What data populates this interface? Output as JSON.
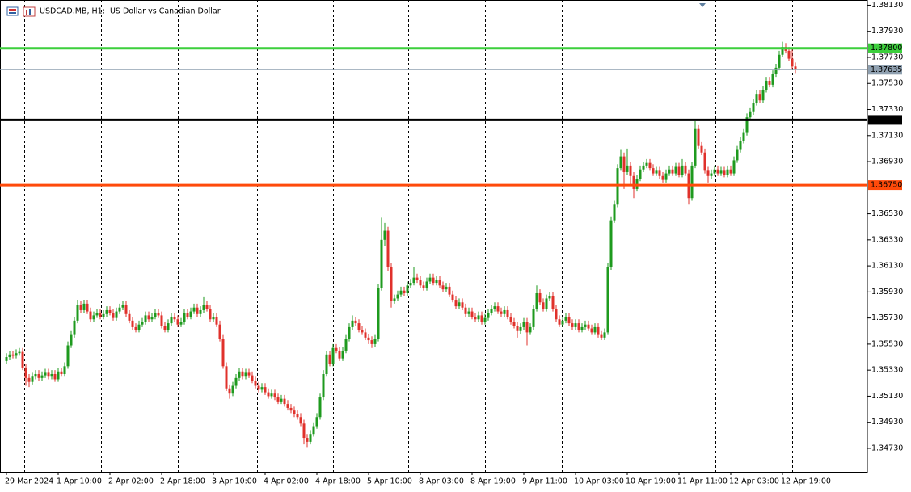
{
  "chart_data": {
    "type": "candlestick",
    "title": "USDCAD.MB, H1:  US Dollar vs Canadian Dollar",
    "up_color": "#1e9a1e",
    "down_color": "#e0312b",
    "xlim": [
      -0.75,
      266.25
    ],
    "ylim": [
      1.3455,
      1.3817
    ],
    "xticks": [
      {
        "value": 0,
        "label": "29 Mar 2024"
      },
      {
        "value": 16,
        "label": "1 Apr 10:00"
      },
      {
        "value": 32,
        "label": "2 Apr 02:00"
      },
      {
        "value": 48,
        "label": "2 Apr 18:00"
      },
      {
        "value": 64,
        "label": "3 Apr 10:00"
      },
      {
        "value": 80,
        "label": "4 Apr 02:00"
      },
      {
        "value": 96,
        "label": "4 Apr 18:00"
      },
      {
        "value": 112,
        "label": "5 Apr 10:00"
      },
      {
        "value": 128,
        "label": "8 Apr 03:00"
      },
      {
        "value": 144,
        "label": "8 Apr 19:00"
      },
      {
        "value": 160,
        "label": "9 Apr 11:00"
      },
      {
        "value": 176,
        "label": "10 Apr 03:00"
      },
      {
        "value": 192,
        "label": "10 Apr 19:00"
      },
      {
        "value": 208,
        "label": "11 Apr 11:00"
      },
      {
        "value": 224,
        "label": "12 Apr 03:00"
      },
      {
        "value": 240,
        "label": "12 Apr 19:00"
      }
    ],
    "yticks": [
      {
        "value": 1.3813,
        "label": "1.38130"
      },
      {
        "value": 1.3793,
        "label": "1.37930"
      },
      {
        "value": 1.3773,
        "label": "1.37730"
      },
      {
        "value": 1.3753,
        "label": "1.37530"
      },
      {
        "value": 1.3733,
        "label": "1.37330"
      },
      {
        "value": 1.3713,
        "label": "1.37130"
      },
      {
        "value": 1.3693,
        "label": "1.36930"
      },
      {
        "value": 1.3653,
        "label": "1.36530"
      },
      {
        "value": 1.3633,
        "label": "1.36330"
      },
      {
        "value": 1.3613,
        "label": "1.36130"
      },
      {
        "value": 1.3593,
        "label": "1.35930"
      },
      {
        "value": 1.3573,
        "label": "1.35730"
      },
      {
        "value": 1.3553,
        "label": "1.35530"
      },
      {
        "value": 1.3533,
        "label": "1.35330"
      },
      {
        "value": 1.3513,
        "label": "1.35130"
      },
      {
        "value": 1.3493,
        "label": "1.34930"
      },
      {
        "value": 1.3473,
        "label": "1.34730"
      }
    ],
    "levels": [
      {
        "value": 1.378,
        "label": "1.37800",
        "color": "#3ccf3c"
      },
      {
        "value": 1.3725,
        "label": "1.37250",
        "color": "#000000"
      },
      {
        "value": 1.3675,
        "label": "1.36750",
        "color": "#ff4a0a"
      }
    ],
    "bid": {
      "value": 1.37635,
      "label": "1.37635",
      "color": "#8fa0b0"
    },
    "open": [
      1.354,
      1.3543,
      1.3545,
      1.3544,
      1.3546,
      1.3547,
      1.3535,
      1.3527,
      1.3524,
      1.3528,
      1.353,
      1.3527,
      1.3529,
      1.3531,
      1.3528,
      1.353,
      1.3526,
      1.3532,
      1.353,
      1.3536,
      1.3552,
      1.356,
      1.3571,
      1.3583,
      1.3579,
      1.3584,
      1.3578,
      1.3572,
      1.3575,
      1.3577,
      1.3574,
      1.3576,
      1.3579,
      1.3577,
      1.3573,
      1.3578,
      1.3581,
      1.3583,
      1.3576,
      1.3571,
      1.3566,
      1.3564,
      1.3568,
      1.357,
      1.3575,
      1.3572,
      1.3574,
      1.3577,
      1.3575,
      1.3567,
      1.3564,
      1.3569,
      1.3574,
      1.3572,
      1.3568,
      1.357,
      1.3577,
      1.3574,
      1.3578,
      1.3581,
      1.3576,
      1.3579,
      1.3583,
      1.358,
      1.3572,
      1.3574,
      1.3568,
      1.3557,
      1.3536,
      1.3519,
      1.3515,
      1.3521,
      1.3527,
      1.3532,
      1.3528,
      1.3531,
      1.3529,
      1.3525,
      1.3521,
      1.3518,
      1.352,
      1.3516,
      1.3513,
      1.3515,
      1.3512,
      1.3509,
      1.3511,
      1.3507,
      1.3504,
      1.3502,
      1.3499,
      1.3497,
      1.3492,
      1.3481,
      1.3478,
      1.3484,
      1.349,
      1.3497,
      1.3512,
      1.353,
      1.3545,
      1.3538,
      1.355,
      1.3548,
      1.3542,
      1.3548,
      1.3557,
      1.3566,
      1.3571,
      1.3569,
      1.3564,
      1.3562,
      1.3558,
      1.3556,
      1.3553,
      1.3557,
      1.3596,
      1.3633,
      1.364,
      1.3612,
      1.3586,
      1.3588,
      1.3591,
      1.3594,
      1.3592,
      1.3598,
      1.36,
      1.3604,
      1.3602,
      1.3598,
      1.3596,
      1.3601,
      1.3604,
      1.36,
      1.3602,
      1.3598,
      1.3595,
      1.3597,
      1.3591,
      1.3587,
      1.3582,
      1.3585,
      1.3581,
      1.3576,
      1.3578,
      1.3574,
      1.3572,
      1.3575,
      1.357,
      1.3573,
      1.3577,
      1.358,
      1.3582,
      1.3578,
      1.3576,
      1.3579,
      1.3574,
      1.357,
      1.3567,
      1.3563,
      1.3566,
      1.357,
      1.3562,
      1.3566,
      1.358,
      1.3592,
      1.3585,
      1.358,
      1.3588,
      1.359,
      1.358,
      1.3572,
      1.3568,
      1.3571,
      1.3574,
      1.3569,
      1.3566,
      1.3569,
      1.3564,
      1.3566,
      1.3568,
      1.3565,
      1.3562,
      1.3566,
      1.356,
      1.3558,
      1.3562,
      1.3612,
      1.3648,
      1.366,
      1.3688,
      1.3697,
      1.3685,
      1.369,
      1.3682,
      1.3672,
      1.368,
      1.3687,
      1.369,
      1.3692,
      1.3688,
      1.3684,
      1.3686,
      1.3682,
      1.3679,
      1.3684,
      1.3687,
      1.3684,
      1.3689,
      1.3683,
      1.369,
      1.3684,
      1.3665,
      1.369,
      1.3718,
      1.3705,
      1.37,
      1.3686,
      1.3682,
      1.3684,
      1.3687,
      1.3684,
      1.3686,
      1.3683,
      1.3687,
      1.3684,
      1.3694,
      1.3702,
      1.3709,
      1.3715,
      1.3727,
      1.3731,
      1.3738,
      1.3745,
      1.374,
      1.3748,
      1.3755,
      1.3752,
      1.376,
      1.3765,
      1.3775,
      1.3781,
      1.3778,
      1.3772,
      1.3766
    ],
    "high": [
      1.3546,
      1.3548,
      1.3548,
      1.3549,
      1.355,
      1.355,
      1.3538,
      1.353,
      1.3531,
      1.3533,
      1.3533,
      1.3532,
      1.3534,
      1.3534,
      1.3533,
      1.3533,
      1.3535,
      1.3535,
      1.3539,
      1.3555,
      1.3563,
      1.3574,
      1.3587,
      1.3586,
      1.3587,
      1.3587,
      1.3581,
      1.3578,
      1.358,
      1.358,
      1.3579,
      1.3582,
      1.3582,
      1.358,
      1.3581,
      1.3584,
      1.3586,
      1.3586,
      1.3579,
      1.3574,
      1.3569,
      1.3571,
      1.3573,
      1.3578,
      1.3578,
      1.3577,
      1.358,
      1.358,
      1.3578,
      1.357,
      1.3572,
      1.3577,
      1.3577,
      1.3575,
      1.3573,
      1.358,
      1.358,
      1.3581,
      1.3584,
      1.3584,
      1.3582,
      1.3589,
      1.3586,
      1.3583,
      1.3577,
      1.3577,
      1.3571,
      1.356,
      1.3539,
      1.3522,
      1.3524,
      1.353,
      1.3535,
      1.3535,
      1.3534,
      1.3534,
      1.3532,
      1.3528,
      1.3524,
      1.3523,
      1.3523,
      1.3519,
      1.3518,
      1.3518,
      1.3515,
      1.3514,
      1.3514,
      1.351,
      1.3507,
      1.3505,
      1.3502,
      1.35,
      1.3495,
      1.3484,
      1.3487,
      1.3493,
      1.35,
      1.3515,
      1.3533,
      1.3548,
      1.3548,
      1.3553,
      1.3553,
      1.3551,
      1.3551,
      1.356,
      1.3569,
      1.3575,
      1.3574,
      1.3572,
      1.3567,
      1.3565,
      1.3561,
      1.3559,
      1.356,
      1.3599,
      1.365,
      1.3646,
      1.3643,
      1.3615,
      1.3591,
      1.3594,
      1.3597,
      1.3597,
      1.3601,
      1.3603,
      1.3612,
      1.3607,
      1.3605,
      1.3601,
      1.3604,
      1.3607,
      1.3607,
      1.3605,
      1.3605,
      1.3601,
      1.36,
      1.36,
      1.3594,
      1.359,
      1.3588,
      1.3588,
      1.3584,
      1.3581,
      1.3581,
      1.3577,
      1.3578,
      1.3578,
      1.3576,
      1.358,
      1.3583,
      1.3585,
      1.3585,
      1.3581,
      1.3582,
      1.3582,
      1.3577,
      1.3573,
      1.357,
      1.3569,
      1.3573,
      1.3573,
      1.3569,
      1.3583,
      1.3598,
      1.3595,
      1.3588,
      1.3591,
      1.3593,
      1.3593,
      1.3583,
      1.3575,
      1.3574,
      1.3577,
      1.3577,
      1.3572,
      1.3572,
      1.3572,
      1.3569,
      1.3571,
      1.3571,
      1.3568,
      1.3569,
      1.3569,
      1.3563,
      1.3565,
      1.3615,
      1.3651,
      1.3663,
      1.3691,
      1.3702,
      1.37,
      1.3703,
      1.3693,
      1.3685,
      1.3683,
      1.369,
      1.3693,
      1.3695,
      1.3695,
      1.3691,
      1.3689,
      1.3689,
      1.3685,
      1.3687,
      1.369,
      1.369,
      1.3692,
      1.3692,
      1.3695,
      1.3693,
      1.3687,
      1.3693,
      1.3724,
      1.3721,
      1.3708,
      1.3703,
      1.3689,
      1.3687,
      1.369,
      1.369,
      1.3689,
      1.3689,
      1.369,
      1.369,
      1.3697,
      1.3705,
      1.3712,
      1.3718,
      1.373,
      1.3734,
      1.3741,
      1.3748,
      1.3748,
      1.3751,
      1.3758,
      1.3758,
      1.3763,
      1.3768,
      1.3778,
      1.3785,
      1.3784,
      1.3781,
      1.3779,
      1.3769
    ],
    "low": [
      1.3538,
      1.3541,
      1.3542,
      1.3542,
      1.3544,
      1.3533,
      1.3521,
      1.352,
      1.3522,
      1.3526,
      1.3525,
      1.3525,
      1.3527,
      1.3526,
      1.3526,
      1.3524,
      1.3524,
      1.3528,
      1.3528,
      1.3534,
      1.355,
      1.3558,
      1.3569,
      1.3577,
      1.3577,
      1.3576,
      1.357,
      1.357,
      1.3573,
      1.3572,
      1.3572,
      1.3574,
      1.3575,
      1.3571,
      1.3571,
      1.3576,
      1.3579,
      1.3574,
      1.3569,
      1.3564,
      1.3562,
      1.3562,
      1.3566,
      1.3568,
      1.357,
      1.357,
      1.3572,
      1.3573,
      1.3565,
      1.3562,
      1.3562,
      1.3567,
      1.357,
      1.3566,
      1.3566,
      1.3568,
      1.3572,
      1.3572,
      1.3576,
      1.3574,
      1.3574,
      1.3577,
      1.3578,
      1.357,
      1.357,
      1.3566,
      1.3555,
      1.3534,
      1.3517,
      1.3511,
      1.3513,
      1.3519,
      1.3525,
      1.3526,
      1.3526,
      1.3527,
      1.3523,
      1.3519,
      1.3516,
      1.3516,
      1.3514,
      1.3511,
      1.3511,
      1.351,
      1.3507,
      1.3507,
      1.3505,
      1.3502,
      1.35,
      1.3497,
      1.3495,
      1.349,
      1.3476,
      1.3474,
      1.3476,
      1.3482,
      1.3488,
      1.3495,
      1.351,
      1.3528,
      1.3536,
      1.3536,
      1.3546,
      1.354,
      1.354,
      1.3546,
      1.3555,
      1.3564,
      1.3567,
      1.3562,
      1.356,
      1.3556,
      1.3553,
      1.355,
      1.3551,
      1.3555,
      1.3594,
      1.3628,
      1.3609,
      1.3581,
      1.3584,
      1.3586,
      1.3589,
      1.359,
      1.359,
      1.3596,
      1.3598,
      1.36,
      1.3596,
      1.3594,
      1.3594,
      1.3599,
      1.3598,
      1.3598,
      1.3596,
      1.3593,
      1.3593,
      1.3589,
      1.3585,
      1.358,
      1.358,
      1.3579,
      1.3574,
      1.3574,
      1.3572,
      1.357,
      1.357,
      1.3568,
      1.3568,
      1.3571,
      1.3575,
      1.3578,
      1.3576,
      1.3574,
      1.3574,
      1.3572,
      1.3568,
      1.3565,
      1.3558,
      1.3561,
      1.3564,
      1.3552,
      1.356,
      1.3564,
      1.3578,
      1.3583,
      1.3578,
      1.3578,
      1.3586,
      1.3578,
      1.357,
      1.3566,
      1.3566,
      1.3569,
      1.3567,
      1.3564,
      1.3564,
      1.3562,
      1.3562,
      1.3564,
      1.3563,
      1.356,
      1.356,
      1.3558,
      1.3556,
      1.3556,
      1.356,
      1.361,
      1.3646,
      1.3658,
      1.3686,
      1.3672,
      1.3683,
      1.3675,
      1.3665,
      1.367,
      1.3678,
      1.3685,
      1.3688,
      1.3686,
      1.3682,
      1.3682,
      1.368,
      1.3677,
      1.3677,
      1.3682,
      1.3682,
      1.3682,
      1.3681,
      1.3681,
      1.3682,
      1.366,
      1.3663,
      1.3688,
      1.3703,
      1.3698,
      1.3684,
      1.3677,
      1.368,
      1.3682,
      1.3682,
      1.3682,
      1.3681,
      1.3681,
      1.3682,
      1.3682,
      1.3692,
      1.37,
      1.3707,
      1.3713,
      1.3725,
      1.3729,
      1.3736,
      1.3738,
      1.3738,
      1.3746,
      1.375,
      1.375,
      1.3758,
      1.3763,
      1.3773,
      1.3776,
      1.377,
      1.3764,
      1.3761
    ],
    "close": [
      1.3543,
      1.3545,
      1.3544,
      1.3546,
      1.3547,
      1.3535,
      1.3527,
      1.3524,
      1.3528,
      1.353,
      1.3527,
      1.3529,
      1.3531,
      1.3528,
      1.353,
      1.3526,
      1.3532,
      1.353,
      1.3536,
      1.3552,
      1.356,
      1.3571,
      1.3583,
      1.3579,
      1.3584,
      1.3578,
      1.3572,
      1.3575,
      1.3577,
      1.3574,
      1.3576,
      1.3579,
      1.3577,
      1.3573,
      1.3578,
      1.3581,
      1.3583,
      1.3576,
      1.3571,
      1.3566,
      1.3564,
      1.3568,
      1.357,
      1.3575,
      1.3572,
      1.3574,
      1.3577,
      1.3575,
      1.3567,
      1.3564,
      1.3569,
      1.3574,
      1.3572,
      1.3568,
      1.357,
      1.3577,
      1.3574,
      1.3578,
      1.3581,
      1.3576,
      1.3579,
      1.3583,
      1.358,
      1.3572,
      1.3574,
      1.3568,
      1.3557,
      1.3536,
      1.3519,
      1.3515,
      1.3521,
      1.3527,
      1.3532,
      1.3528,
      1.3531,
      1.3529,
      1.3525,
      1.3521,
      1.3518,
      1.352,
      1.3516,
      1.3513,
      1.3515,
      1.3512,
      1.3509,
      1.3511,
      1.3507,
      1.3504,
      1.3502,
      1.3499,
      1.3497,
      1.3492,
      1.3481,
      1.3478,
      1.3484,
      1.349,
      1.3497,
      1.3512,
      1.353,
      1.3545,
      1.3538,
      1.355,
      1.3548,
      1.3542,
      1.3548,
      1.3557,
      1.3566,
      1.3571,
      1.3569,
      1.3564,
      1.3562,
      1.3558,
      1.3556,
      1.3553,
      1.3557,
      1.3596,
      1.3633,
      1.364,
      1.3612,
      1.3586,
      1.3588,
      1.3591,
      1.3594,
      1.3592,
      1.3598,
      1.36,
      1.3604,
      1.3602,
      1.3598,
      1.3596,
      1.3601,
      1.3604,
      1.36,
      1.3602,
      1.3598,
      1.3595,
      1.3597,
      1.3591,
      1.3587,
      1.3582,
      1.3585,
      1.3581,
      1.3576,
      1.3578,
      1.3574,
      1.3572,
      1.3575,
      1.357,
      1.3573,
      1.3577,
      1.358,
      1.3582,
      1.3578,
      1.3576,
      1.3579,
      1.3574,
      1.357,
      1.3567,
      1.3563,
      1.3566,
      1.357,
      1.3562,
      1.3566,
      1.358,
      1.3592,
      1.3585,
      1.358,
      1.3588,
      1.359,
      1.358,
      1.3572,
      1.3568,
      1.3571,
      1.3574,
      1.3569,
      1.3566,
      1.3569,
      1.3564,
      1.3566,
      1.3568,
      1.3565,
      1.3562,
      1.3566,
      1.356,
      1.3558,
      1.3562,
      1.3612,
      1.3648,
      1.366,
      1.3688,
      1.3697,
      1.3685,
      1.369,
      1.3682,
      1.3672,
      1.368,
      1.3687,
      1.369,
      1.3692,
      1.3688,
      1.3684,
      1.3686,
      1.3682,
      1.3679,
      1.3684,
      1.3687,
      1.3684,
      1.3689,
      1.3683,
      1.369,
      1.3684,
      1.3665,
      1.369,
      1.3718,
      1.3705,
      1.37,
      1.3686,
      1.3682,
      1.3684,
      1.3687,
      1.3684,
      1.3686,
      1.3683,
      1.3687,
      1.3684,
      1.3694,
      1.3702,
      1.3709,
      1.3715,
      1.3727,
      1.3731,
      1.3738,
      1.3745,
      1.374,
      1.3748,
      1.3755,
      1.3752,
      1.376,
      1.3765,
      1.3775,
      1.3781,
      1.3778,
      1.3772,
      1.3766,
      1.37635
    ]
  }
}
